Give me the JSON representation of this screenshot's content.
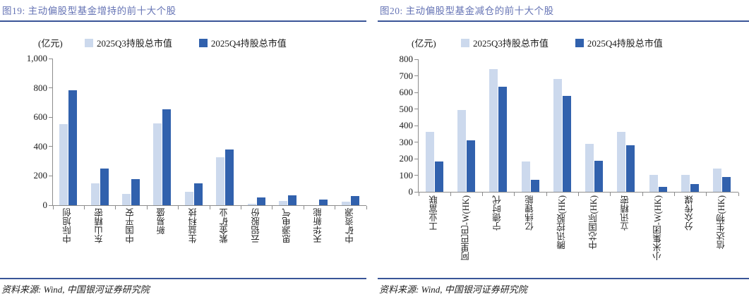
{
  "colors": {
    "q3_light": "#ccd9ed",
    "q4_dark": "#3161ad",
    "title_text": "#6674b5",
    "rule_line": "#3a5598",
    "axis_gray": "#8c8c8c"
  },
  "source_note": "资料来源: Wind, 中国银河证券研究院",
  "chart_data": [
    {
      "type": "bar",
      "title": "图19: 主动偏股型基金增持的前十大个股",
      "unit_label": "(亿元)",
      "categories": [
        "中际旭创",
        "东山精密",
        "中国平安",
        "新易盛",
        "生益科技",
        "紫金矿业",
        "云铝股份",
        "思源电气",
        "天华新能",
        "中矿资源"
      ],
      "series": [
        {
          "name": "2025Q3持股总市值",
          "values": [
            555,
            147,
            78,
            558,
            89,
            327,
            11,
            27,
            2,
            25
          ]
        },
        {
          "name": "2025Q4持股总市值",
          "values": [
            783,
            249,
            180,
            653,
            150,
            380,
            53,
            69,
            40,
            61
          ]
        }
      ],
      "ylabel": "(亿元)",
      "xlabel": "",
      "ylim": [
        0,
        1000
      ],
      "ystep": 200,
      "grid": false,
      "legend_position": "top"
    },
    {
      "type": "bar",
      "title": "图20: 主动偏股型基金减仓的前十大个股",
      "unit_label": "(亿元)",
      "categories": [
        "工业富联",
        "阿里巴巴-W(HK)",
        "宁德时代",
        "亿纬锂能",
        "腾讯控股(HK)",
        "中芯国际(HK)",
        "立讯精密",
        "小米集团-W(HK)",
        "分众传媒",
        "信达生物(HK)"
      ],
      "series": [
        {
          "name": "2025Q3持股总市值",
          "values": [
            362,
            492,
            742,
            182,
            681,
            290,
            363,
            101,
            100,
            140
          ]
        },
        {
          "name": "2025Q4持股总市值",
          "values": [
            183,
            311,
            636,
            73,
            579,
            188,
            281,
            31,
            45,
            88
          ]
        }
      ],
      "ylabel": "(亿元)",
      "xlabel": "",
      "ylim": [
        0,
        800
      ],
      "ystep": 100,
      "grid": false,
      "legend_position": "top"
    }
  ]
}
